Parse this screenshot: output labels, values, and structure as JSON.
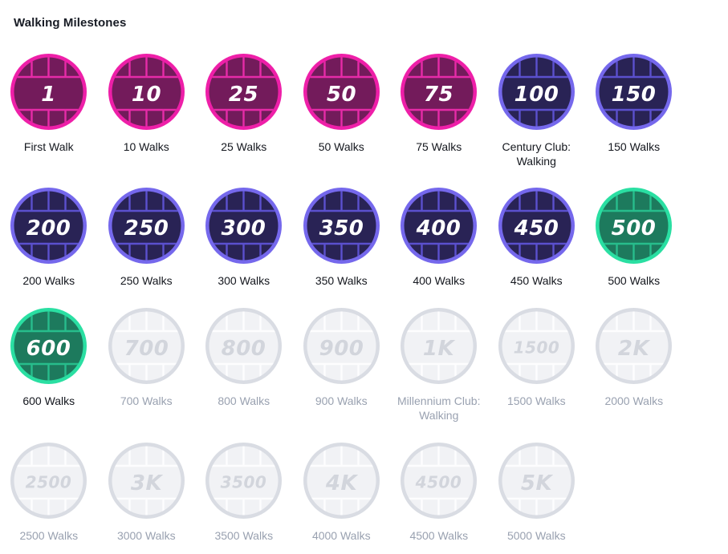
{
  "page": {
    "title": "Walking Milestones"
  },
  "badge_colors": {
    "pink": {
      "ring": "#ee1fa8",
      "fill": "#731b5b",
      "line": "#e62ba8",
      "number": "#ffffff"
    },
    "purple": {
      "ring": "#7568ec",
      "fill": "#292355",
      "line": "#5b50ce",
      "number": "#ffffff"
    },
    "green": {
      "ring": "#2adfa2",
      "fill": "#1d7a5d",
      "line": "#27bd8c",
      "number": "#ffffff"
    },
    "locked": {
      "ring": "#d9dce3",
      "fill": "#f1f2f5",
      "line": "#fdfdfe",
      "number": "#d2d5dc"
    }
  },
  "label_colors": {
    "earned": "#14171e",
    "locked": "#99a1b0"
  },
  "milestones": [
    {
      "value": "1",
      "label": "First Walk",
      "state": "pink"
    },
    {
      "value": "10",
      "label": "10 Walks",
      "state": "pink"
    },
    {
      "value": "25",
      "label": "25 Walks",
      "state": "pink"
    },
    {
      "value": "50",
      "label": "50 Walks",
      "state": "pink"
    },
    {
      "value": "75",
      "label": "75 Walks",
      "state": "pink"
    },
    {
      "value": "100",
      "label": "Century Club: Walking",
      "state": "purple"
    },
    {
      "value": "150",
      "label": "150 Walks",
      "state": "purple"
    },
    {
      "value": "200",
      "label": "200 Walks",
      "state": "purple"
    },
    {
      "value": "250",
      "label": "250 Walks",
      "state": "purple"
    },
    {
      "value": "300",
      "label": "300 Walks",
      "state": "purple"
    },
    {
      "value": "350",
      "label": "350 Walks",
      "state": "purple"
    },
    {
      "value": "400",
      "label": "400 Walks",
      "state": "purple"
    },
    {
      "value": "450",
      "label": "450 Walks",
      "state": "purple"
    },
    {
      "value": "500",
      "label": "500 Walks",
      "state": "green"
    },
    {
      "value": "600",
      "label": "600 Walks",
      "state": "green"
    },
    {
      "value": "700",
      "label": "700 Walks",
      "state": "locked"
    },
    {
      "value": "800",
      "label": "800 Walks",
      "state": "locked"
    },
    {
      "value": "900",
      "label": "900 Walks",
      "state": "locked"
    },
    {
      "value": "1K",
      "label": "Millennium Club: Walking",
      "state": "locked"
    },
    {
      "value": "1500",
      "label": "1500 Walks",
      "state": "locked"
    },
    {
      "value": "2K",
      "label": "2000 Walks",
      "state": "locked"
    },
    {
      "value": "2500",
      "label": "2500 Walks",
      "state": "locked"
    },
    {
      "value": "3K",
      "label": "3000 Walks",
      "state": "locked"
    },
    {
      "value": "3500",
      "label": "3500 Walks",
      "state": "locked"
    },
    {
      "value": "4K",
      "label": "4000 Walks",
      "state": "locked"
    },
    {
      "value": "4500",
      "label": "4500 Walks",
      "state": "locked"
    },
    {
      "value": "5K",
      "label": "5000 Walks",
      "state": "locked"
    }
  ]
}
